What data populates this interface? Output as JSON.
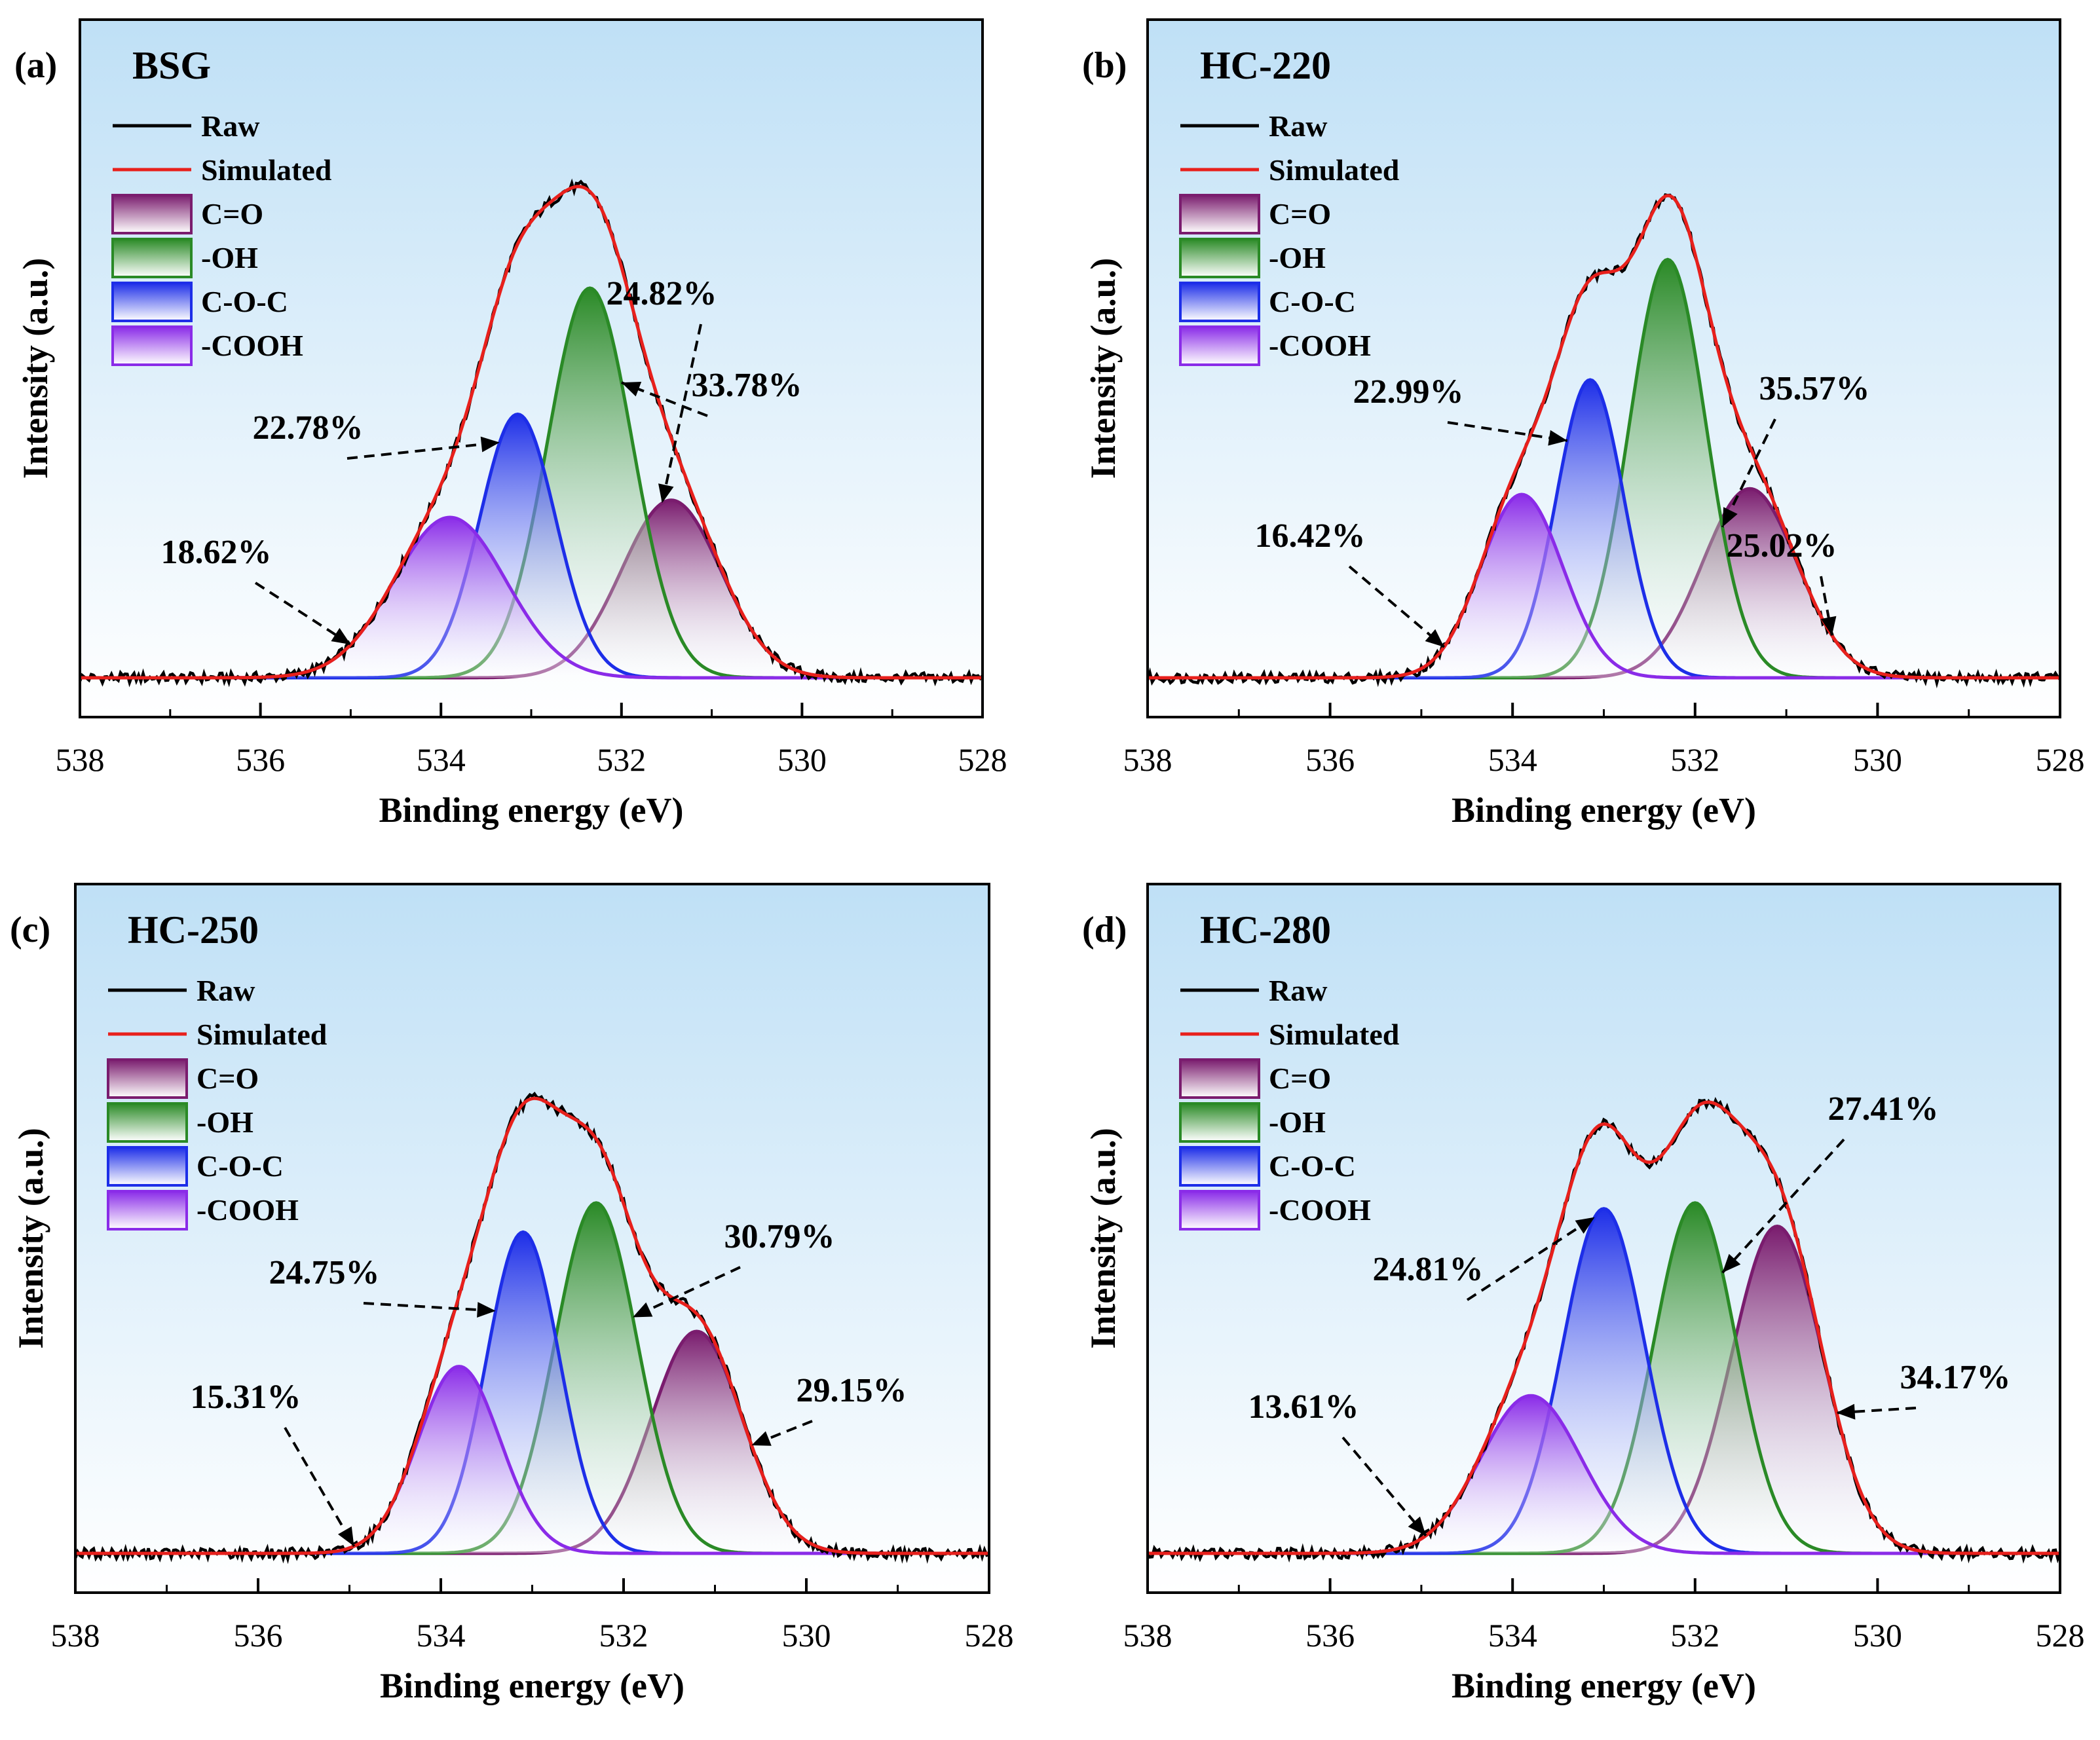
{
  "chart_data": [
    {
      "type": "line",
      "panel_label": "(a)",
      "title": "BSG",
      "xlabel": "Binding energy (eV)",
      "ylabel": "Intensity (a.u.)",
      "xlim": [
        538,
        528
      ],
      "x_ticks": [
        "538",
        "536",
        "534",
        "532",
        "530",
        "528"
      ],
      "legend_placement": "top-left",
      "legend": [
        "Raw",
        "Simulated",
        "C=O",
        "-OH",
        "C-O-C",
        "-COOH"
      ],
      "peaks": [
        {
          "name": "C=O",
          "center": 531.45,
          "height": 0.31,
          "sigma": 0.55,
          "percent_label": "24.82%"
        },
        {
          "name": "-OH",
          "center": 532.35,
          "height": 0.68,
          "sigma": 0.47,
          "percent_label": "33.78%"
        },
        {
          "name": "C-O-C",
          "center": 533.15,
          "height": 0.46,
          "sigma": 0.42,
          "percent_label": "22.78%"
        },
        {
          "name": "-COOH",
          "center": 533.9,
          "height": 0.28,
          "sigma": 0.62,
          "percent_label": "18.62%"
        }
      ],
      "baseline": [
        0.0,
        0.0
      ]
    },
    {
      "type": "line",
      "panel_label": "(b)",
      "title": "HC-220",
      "xlabel": "Binding energy (eV)",
      "ylabel": "Intensity (a.u.)",
      "xlim": [
        538,
        528
      ],
      "x_ticks": [
        "538",
        "536",
        "534",
        "532",
        "530",
        "528"
      ],
      "legend_placement": "top-left",
      "legend": [
        "Raw",
        "Simulated",
        "C=O",
        "-OH",
        "C-O-C",
        "-COOH"
      ],
      "peaks": [
        {
          "name": "C=O",
          "center": 531.4,
          "height": 0.33,
          "sigma": 0.52,
          "percent_label": "25.02%"
        },
        {
          "name": "-OH",
          "center": 532.3,
          "height": 0.73,
          "sigma": 0.42,
          "percent_label": "35.57%"
        },
        {
          "name": "C-O-C",
          "center": 533.15,
          "height": 0.52,
          "sigma": 0.37,
          "percent_label": "22.99%"
        },
        {
          "name": "-COOH",
          "center": 533.9,
          "height": 0.32,
          "sigma": 0.45,
          "percent_label": "16.42%"
        }
      ],
      "baseline": [
        0.0,
        0.0
      ]
    },
    {
      "type": "line",
      "panel_label": "(c)",
      "title": "HC-250",
      "xlabel": "Binding energy (eV)",
      "ylabel": "Intensity (a.u.)",
      "xlim": [
        538,
        528
      ],
      "x_ticks": [
        "538",
        "536",
        "534",
        "532",
        "530",
        "528"
      ],
      "legend_placement": "top-left",
      "legend": [
        "Raw",
        "Simulated",
        "C=O",
        "-OH",
        "C-O-C",
        "-COOH"
      ],
      "peaks": [
        {
          "name": "C=O",
          "center": 531.2,
          "height": 0.38,
          "sigma": 0.5,
          "percent_label": "29.15%"
        },
        {
          "name": "-OH",
          "center": 532.3,
          "height": 0.6,
          "sigma": 0.45,
          "percent_label": "30.79%"
        },
        {
          "name": "C-O-C",
          "center": 533.1,
          "height": 0.55,
          "sigma": 0.4,
          "percent_label": "24.75%"
        },
        {
          "name": "-COOH",
          "center": 533.8,
          "height": 0.32,
          "sigma": 0.45,
          "percent_label": "15.31%"
        }
      ],
      "baseline": [
        0.0,
        0.0
      ]
    },
    {
      "type": "line",
      "panel_label": "(d)",
      "title": "HC-280",
      "xlabel": "Binding energy (eV)",
      "ylabel": "Intensity (a.u.)",
      "xlim": [
        538,
        528
      ],
      "x_ticks": [
        "538",
        "536",
        "534",
        "532",
        "530",
        "528"
      ],
      "legend_placement": "top-left",
      "legend": [
        "Raw",
        "Simulated",
        "C=O",
        "-OH",
        "C-O-C",
        "-COOH"
      ],
      "peaks": [
        {
          "name": "C=O",
          "center": 531.1,
          "height": 0.56,
          "sigma": 0.5,
          "percent_label": "34.17%"
        },
        {
          "name": "-OH",
          "center": 532.0,
          "height": 0.6,
          "sigma": 0.45,
          "percent_label": "27.41%"
        },
        {
          "name": "C-O-C",
          "center": 533.0,
          "height": 0.59,
          "sigma": 0.45,
          "percent_label": "24.81%"
        },
        {
          "name": "-COOH",
          "center": 533.8,
          "height": 0.27,
          "sigma": 0.55,
          "percent_label": "13.61%"
        }
      ],
      "baseline": [
        0.0,
        0.0
      ]
    }
  ],
  "colors": {
    "background_top": "#bfe0f6",
    "background_bottom": "#ffffff",
    "raw": "#000000",
    "simulated": "#e8201c",
    "c_o": "#7a1c6e",
    "oh": "#2a8a26",
    "coc": "#1d2ee8",
    "cooh": "#8a2be8"
  }
}
